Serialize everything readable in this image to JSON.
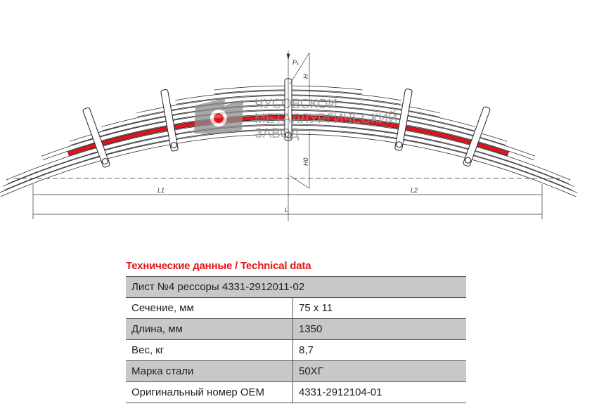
{
  "drawing": {
    "labels": {
      "force": "Pₓ",
      "height": "H",
      "height0": "H0",
      "left_length": "L1",
      "right_length": "L2",
      "total_length": "L"
    },
    "watermark": {
      "lines": [
        "ЧУСОВСКОЙ",
        "МЕТАЛЛУРГИЧЕСКИЙ",
        "ЗАВОД"
      ]
    },
    "colors": {
      "highlight_leaf": "#e4131b",
      "watermark": "#8c8c8c"
    }
  },
  "table": {
    "title": "Технические данные / Technical data",
    "header": "Лист №4 рессоры 4331-2912011-02",
    "rows": [
      {
        "label": "Сечение, мм",
        "value": "75 x 11"
      },
      {
        "label": "Длина, мм",
        "value": "1350"
      },
      {
        "label": "Вес, кг",
        "value": "8,7"
      },
      {
        "label": "Марка стали",
        "value": "50ХГ"
      },
      {
        "label": "Оригинальный номер OEM",
        "value": "4331-2912104-01"
      }
    ]
  }
}
